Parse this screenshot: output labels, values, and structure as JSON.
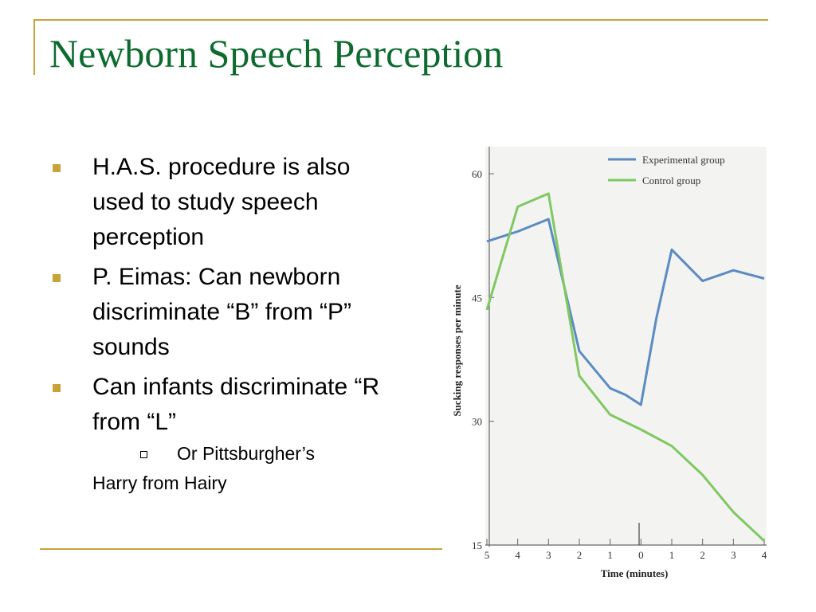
{
  "slide": {
    "title": "Newborn Speech Perception",
    "bullets": [
      {
        "text": "H.A.S. procedure is also used to study speech perception"
      },
      {
        "text": "P. Eimas: Can newborn discriminate “B” from “P” sounds"
      },
      {
        "text": "Can infants discriminate “R from “L”"
      }
    ],
    "sub_bullet": "Or Pittsburgher’s",
    "trailing_text": "Harry from Hairy",
    "accent_color": "#c8a33a",
    "title_color": "#0d6b2e"
  },
  "chart_data": {
    "type": "line",
    "xlabel": "Time (minutes)",
    "ylabel": "Sucking responses per minute",
    "categories": [
      "5",
      "4",
      "3",
      "2",
      "1",
      "0",
      "1",
      "2",
      "3",
      "4"
    ],
    "yticks": [
      "60",
      "45",
      "30",
      "15"
    ],
    "ylim": [
      15,
      62
    ],
    "legend_position": "top-right",
    "series": [
      {
        "name": "Experimental group",
        "color": "#5b8bc2",
        "points": [
          [
            0,
            51.8
          ],
          [
            1,
            53
          ],
          [
            2,
            54.5
          ],
          [
            3,
            38.5
          ],
          [
            4,
            34
          ],
          [
            4.5,
            33.2
          ],
          [
            5,
            32
          ],
          [
            5.5,
            42.5
          ],
          [
            6,
            50.8
          ],
          [
            7,
            47
          ],
          [
            8,
            48.3
          ],
          [
            9,
            47.3
          ]
        ]
      },
      {
        "name": "Control group",
        "color": "#80c862",
        "points": [
          [
            0,
            43.5
          ],
          [
            1,
            56
          ],
          [
            2,
            57.6
          ],
          [
            3,
            35.5
          ],
          [
            4,
            30.8
          ],
          [
            5,
            29
          ],
          [
            6,
            27
          ],
          [
            7,
            23.5
          ],
          [
            8,
            19
          ],
          [
            9,
            15.5
          ]
        ]
      }
    ]
  }
}
